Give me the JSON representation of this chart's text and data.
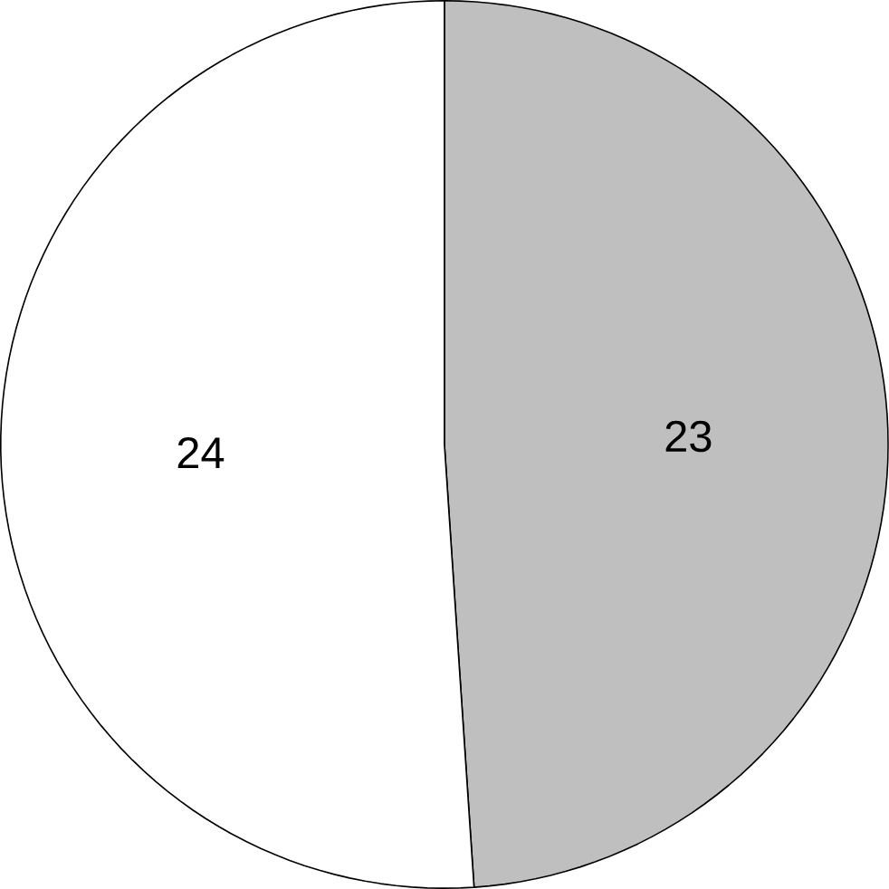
{
  "chart_data": {
    "type": "pie",
    "categories": [
      null,
      null
    ],
    "values": [
      23,
      24
    ],
    "colors": [
      "#bfbfbf",
      "#ffffff"
    ],
    "data_labels": true
  }
}
